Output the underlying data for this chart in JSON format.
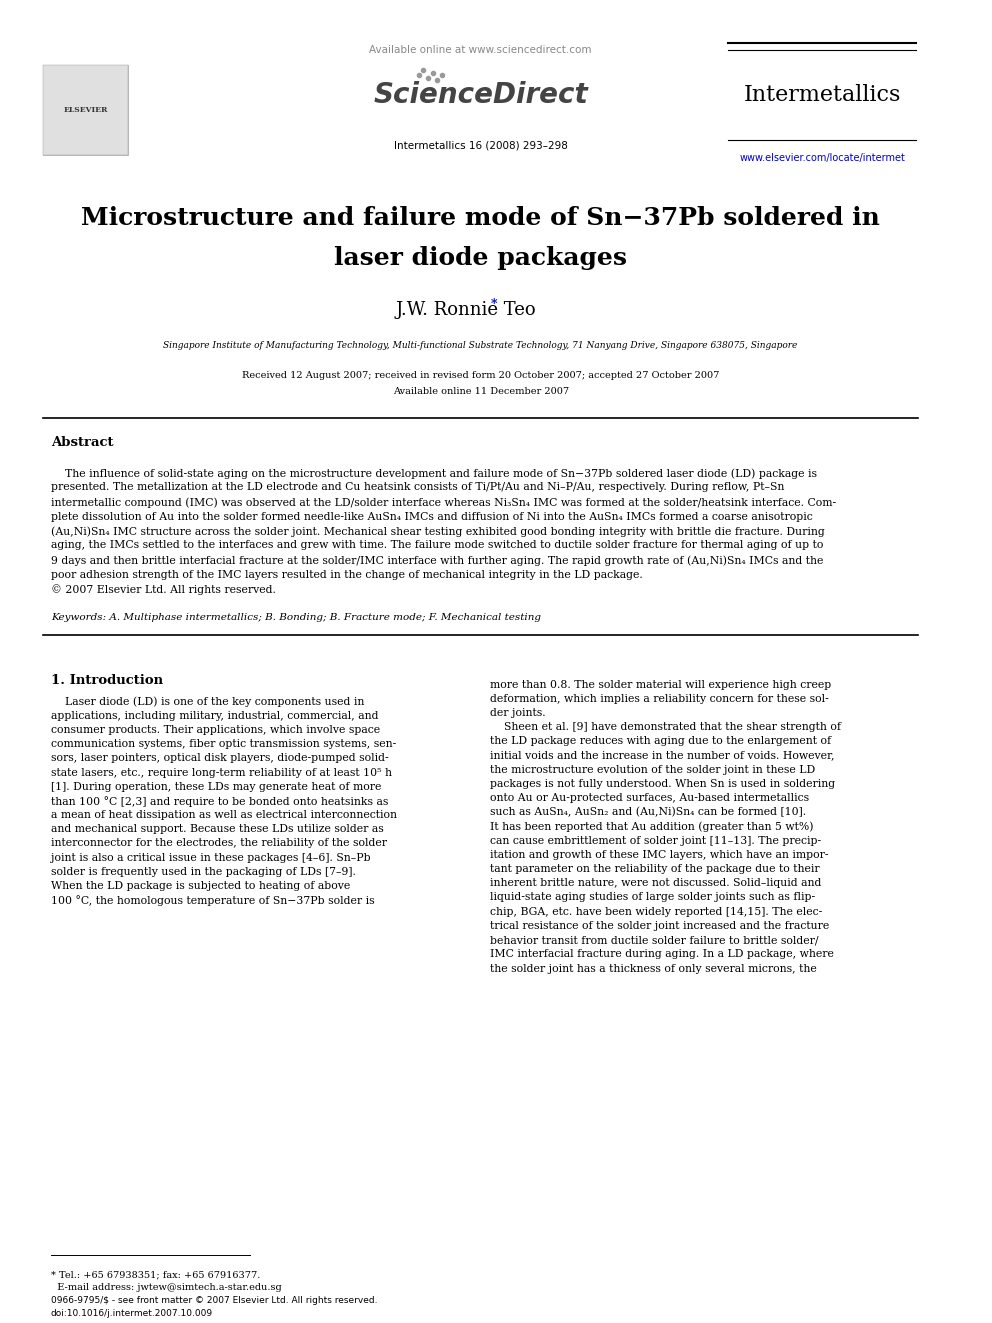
{
  "title_line1": "Microstructure and failure mode of Sn−37Pb soldered in",
  "title_line2": "laser diode packages",
  "author": "J.W. Ronnie Teo",
  "author_star": "*",
  "affiliation": "Singapore Institute of Manufacturing Technology, Multi-functional Substrate Technology, 71 Nanyang Drive, Singapore 638075, Singapore",
  "received": "Received 12 August 2007; received in revised form 20 October 2007; accepted 27 October 2007",
  "available": "Available online 11 December 2007",
  "journal_name": "Intermetallics",
  "journal_url": "www.elsevier.com/locate/intermet",
  "journal_issue": "Intermetallics 16 (2008) 293–298",
  "sciencedirect_text": "Available online at www.sciencedirect.com",
  "sciencedirect_logo": "ScienceDirect",
  "abstract_title": "Abstract",
  "abstract_text": "The influence of solid-state aging on the microstructure development and failure mode of Sn−37Pb soldered laser diode (LD) package is presented. The metallization at the LD electrode and Cu heatsink consists of Ti/Pt/Au and Ni–P/Au, respectively. During reflow, Pt–Sn intermetallic compound (IMC) was observed at the LD/solder interface whereas Ni3Sn4 IMC was formed at the solder/heatsink interface. Complete dissolution of Au into the solder formed needle-like AuSn4 IMCs and diffusion of Ni into the AuSn4 IMCs formed a coarse anisotropic (Au,Ni)Sn4 IMC structure across the solder joint. Mechanical shear testing exhibited good bonding integrity with brittle die fracture. During aging, the IMCs settled to the interfaces and grew with time. The failure mode switched to ductile solder fracture for thermal aging of up to 9 days and then brittle interfacial fracture at the solder/IMC interface with further aging. The rapid growth rate of (Au,Ni)Sn4 IMCs and the poor adhesion strength of the IMC layers resulted in the change of mechanical integrity in the LD package.\n© 2007 Elsevier Ltd. All rights reserved.",
  "keywords": "Keywords: A. Multiphase intermetallics; B. Bonding; B. Fracture mode; F. Mechanical testing",
  "intro_title": "1. Introduction",
  "intro_col1": "Laser diode (LD) is one of the key components used in applications, including military, industrial, commercial, and consumer products. Their applications, which involve space communication systems, fiber optic transmission systems, sensors, laser pointers, optical disk players, diode-pumped solid-state lasers, etc., require long-term reliability of at least 10⁵ h [1]. During operation, these LDs may generate heat of more than 100 °C [2,3] and require to be bonded onto heatsinks as a mean of heat dissipation as well as electrical interconnection and mechanical support. Because these LDs utilize solder as interconnector for the electrodes, the reliability of the solder joint is also a critical issue in these packages [4–6]. Sn–Pb solder is frequently used in the packaging of LDs [7–9]. When the LD package is subjected to heating of above 100 °C, the homologous temperature of Sn−37Pb solder is",
  "intro_col2": "more than 0.8. The solder material will experience high creep deformation, which implies a reliability concern for these solder joints.\n    Sheen et al. [9] have demonstrated that the shear strength of the LD package reduces with aging due to the enlargement of initial voids and the increase in the number of voids. However, the microstructure evolution of the solder joint in these LD packages is not fully understood. When Sn is used in soldering onto Au or Au-protected surfaces, Au-based intermetallics such as AuSn4, AuSn2 and (Au,Ni)Sn4 can be formed [10]. It has been reported that Au addition (greater than 5 wt%) can cause embrittlement of solder joint [11–13]. The precipitation and growth of these IMC layers, which have an important parameter on the reliability of the package due to their inherent brittle nature, were not discussed. Solid–liquid and liquid-state aging studies of large solder joints such as flip-chip, BGA, etc. have been widely reported [14,15]. The electrical resistance of the solder joint increased and the fracture behavior transit from ductile solder failure to brittle solder/IMC interfacial fracture during aging. In a LD package, where the solder joint has a thickness of only several microns, the",
  "footnote": "* Tel.: +65 67938351; fax: +65 67916377.\n  E-mail address: jwtew@simtech.a-star.edu.sg",
  "footer": "0966-9795/$ - see front matter © 2007 Elsevier Ltd. All rights reserved.\ndoi:10.1016/j.intermet.2007.10.009",
  "bg_color": "#ffffff",
  "text_color": "#000000",
  "blue_color": "#0000cc",
  "gray_color": "#888888",
  "header_line_color": "#000000"
}
